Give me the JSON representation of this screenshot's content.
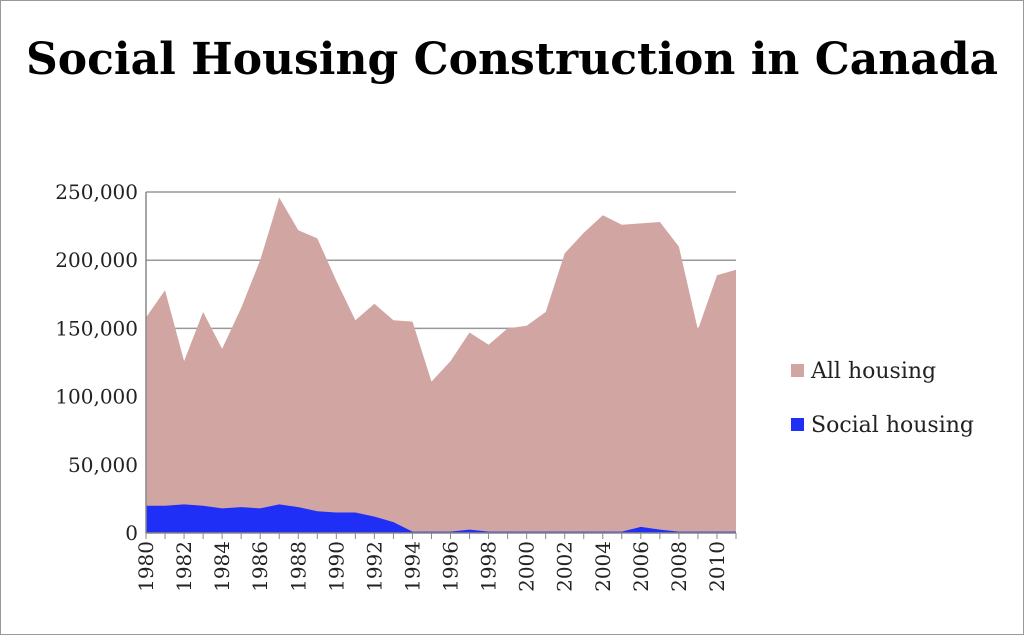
{
  "chart_data": {
    "type": "area",
    "title": "Social Housing Construction in Canada",
    "xlabel": "",
    "ylabel": "",
    "ylim": [
      0,
      250000
    ],
    "yticks": [
      "0",
      "50,000",
      "100,000",
      "150,000",
      "200,000",
      "250,000"
    ],
    "grid": true,
    "legend_position": "right",
    "x": [
      1980,
      1981,
      1982,
      1983,
      1984,
      1985,
      1986,
      1987,
      1988,
      1989,
      1990,
      1991,
      1992,
      1993,
      1994,
      1995,
      1996,
      1997,
      1998,
      1999,
      2000,
      2001,
      2002,
      2003,
      2004,
      2005,
      2006,
      2007,
      2008,
      2009,
      2010,
      2011
    ],
    "xtick_labels": [
      "1980",
      "1982",
      "1984",
      "1986",
      "1988",
      "1990",
      "1992",
      "1994",
      "1996",
      "1998",
      "2000",
      "2002",
      "2004",
      "2006",
      "2008",
      "2010"
    ],
    "series": [
      {
        "name": "All housing",
        "color": "#d0a5a2",
        "values": [
          158000,
          178000,
          126000,
          162000,
          135000,
          165000,
          200000,
          246000,
          222000,
          216000,
          185000,
          156000,
          168000,
          156000,
          155000,
          111000,
          126000,
          147000,
          138000,
          150000,
          152000,
          162000,
          205000,
          220000,
          233000,
          226000,
          227000,
          228000,
          210000,
          149000,
          189000,
          193000
        ]
      },
      {
        "name": "Social housing",
        "color": "#1f2ff5",
        "values": [
          20000,
          20000,
          21000,
          20000,
          18000,
          19000,
          18000,
          21000,
          19000,
          16000,
          15000,
          15000,
          12000,
          8000,
          1000,
          1000,
          1000,
          2500,
          1000,
          1000,
          1000,
          1000,
          1000,
          1000,
          1000,
          1000,
          4500,
          2500,
          1000,
          1000,
          1000,
          1000
        ]
      }
    ]
  }
}
